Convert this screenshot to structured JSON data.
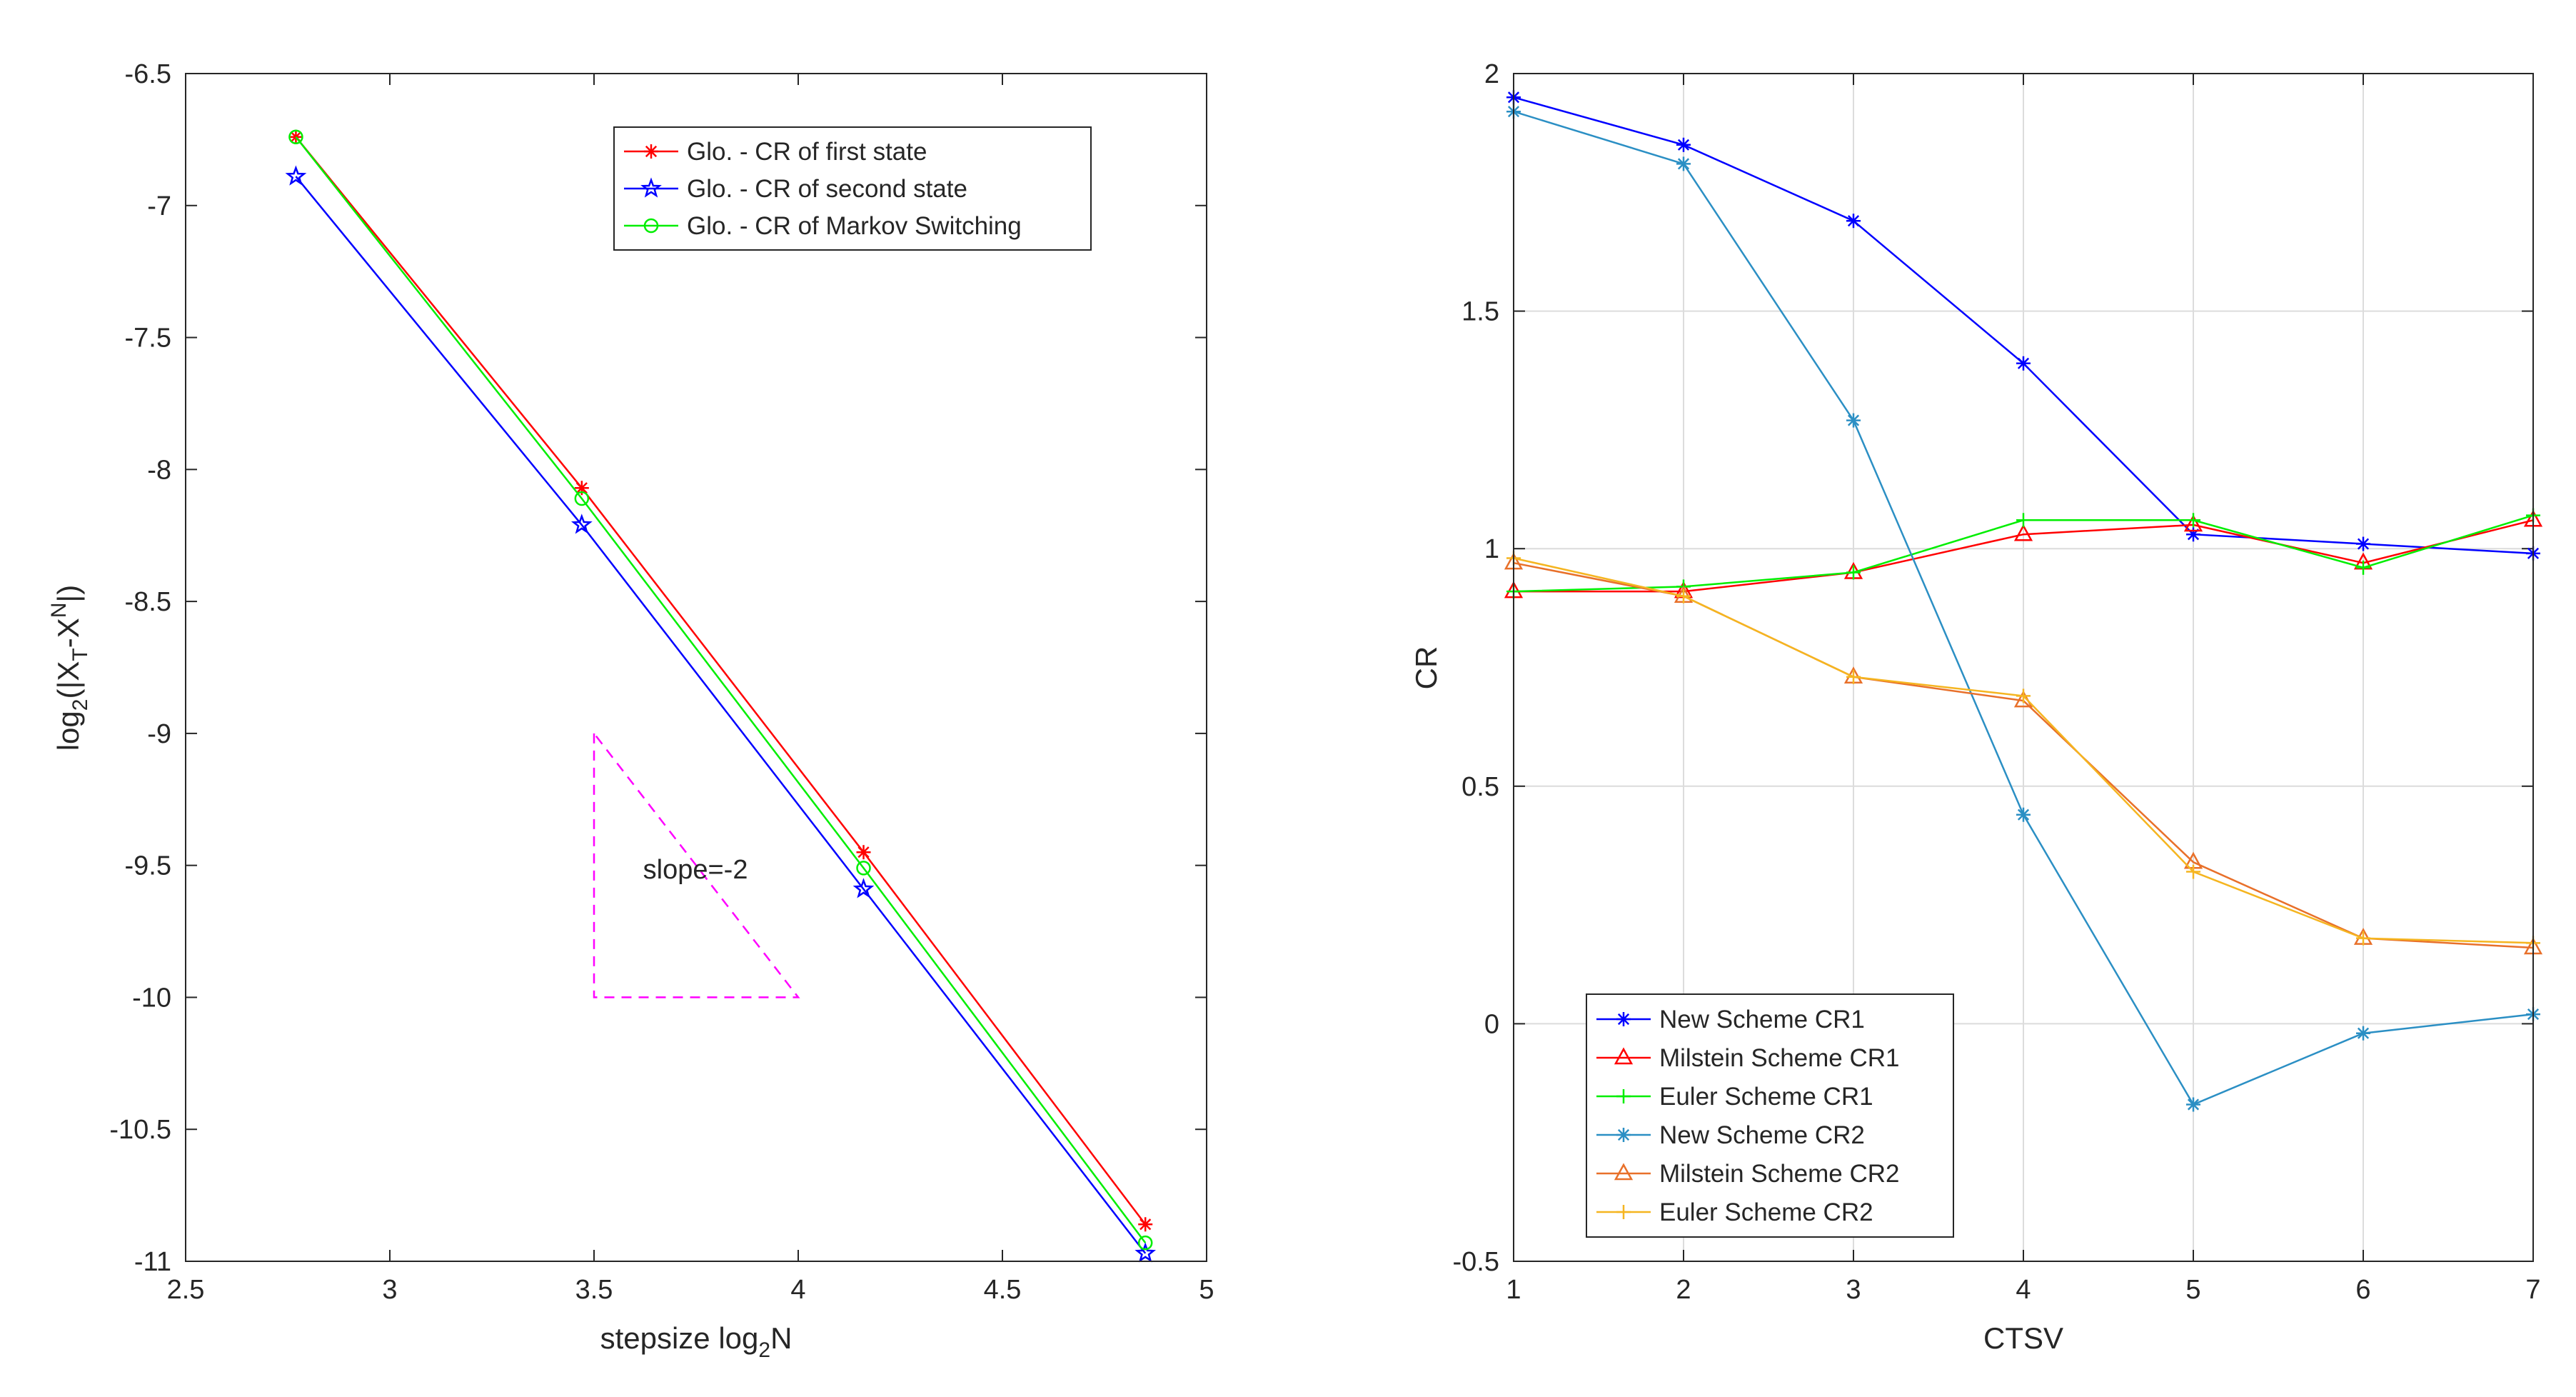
{
  "chart_data": [
    {
      "type": "line",
      "title": "",
      "xlabel": "stepsize log",
      "xlabel_sub": "2",
      "xlabel_tail": "N",
      "ylabel": {
        "a": "log",
        "b": "2",
        "c": "(|X",
        "d": "T",
        "e": "-X",
        "f": "N",
        "g": "|)"
      },
      "xlim": [
        2.5,
        5
      ],
      "ylim": [
        -11,
        -6.5
      ],
      "xticks": [
        "2.5",
        "3",
        "3.5",
        "4",
        "4.5",
        "5"
      ],
      "yticks": [
        "-6.5",
        "-7",
        "-7.5",
        "-8",
        "-8.5",
        "-9",
        "-9.5",
        "-10",
        "-10.5",
        "-11"
      ],
      "grid": false,
      "legend_position": "top-right",
      "x": [
        2.77,
        3.47,
        4.16,
        4.85
      ],
      "series": [
        {
          "name": "Glo. - CR of first state",
          "color": "#ff0000",
          "marker": "asterisk",
          "values": [
            -6.74,
            -8.07,
            -9.45,
            -10.86
          ]
        },
        {
          "name": "Glo. - CR of second state",
          "color": "#0000ff",
          "marker": "pentagram",
          "values": [
            -6.89,
            -8.21,
            -9.59,
            -10.97
          ]
        },
        {
          "name": "Glo. - CR of Markov Switching",
          "color": "#00ee00",
          "marker": "circle",
          "values": [
            -6.74,
            -8.11,
            -9.51,
            -10.93
          ]
        }
      ],
      "annotation": {
        "text": "slope=-2",
        "x": 3.62,
        "y": -9.55,
        "triangle": [
          [
            3.5,
            -9
          ],
          [
            3.5,
            -10
          ],
          [
            4,
            -10
          ]
        ],
        "color": "#ff00ff"
      }
    },
    {
      "type": "line",
      "title": "",
      "xlabel": "CTSV",
      "ylabel": "CR",
      "xlim": [
        1,
        7
      ],
      "ylim": [
        -0.5,
        2
      ],
      "xticks": [
        "1",
        "2",
        "3",
        "4",
        "5",
        "6",
        "7"
      ],
      "yticks": [
        "-0.5",
        "0",
        "0.5",
        "1",
        "1.5",
        "2"
      ],
      "grid": true,
      "legend_position": "bottom-left",
      "x": [
        1,
        2,
        3,
        4,
        5,
        6,
        7
      ],
      "series": [
        {
          "name": "New Scheme CR1",
          "color": "#0000ff",
          "marker": "asterisk",
          "values": [
            1.95,
            1.85,
            1.69,
            1.39,
            1.03,
            1.01,
            0.99
          ]
        },
        {
          "name": "Milstein Scheme CR1",
          "color": "#ff0000",
          "marker": "triangle",
          "values": [
            0.91,
            0.91,
            0.95,
            1.03,
            1.05,
            0.97,
            1.06
          ]
        },
        {
          "name": "Euler Scheme CR1",
          "color": "#00ee00",
          "marker": "plus",
          "values": [
            0.91,
            0.92,
            0.95,
            1.06,
            1.06,
            0.96,
            1.07
          ]
        },
        {
          "name": "New Scheme CR2",
          "color": "#2b8fc4",
          "marker": "asterisk",
          "values": [
            1.92,
            1.81,
            1.27,
            0.44,
            -0.17,
            -0.02,
            0.02
          ]
        },
        {
          "name": "Milstein Scheme CR2",
          "color": "#e8702a",
          "marker": "triangle",
          "values": [
            0.97,
            0.9,
            0.73,
            0.68,
            0.34,
            0.18,
            0.16
          ]
        },
        {
          "name": "Euler Scheme CR2",
          "color": "#f5b520",
          "marker": "plus",
          "values": [
            0.98,
            0.9,
            0.73,
            0.69,
            0.32,
            0.18,
            0.17
          ]
        }
      ]
    }
  ]
}
